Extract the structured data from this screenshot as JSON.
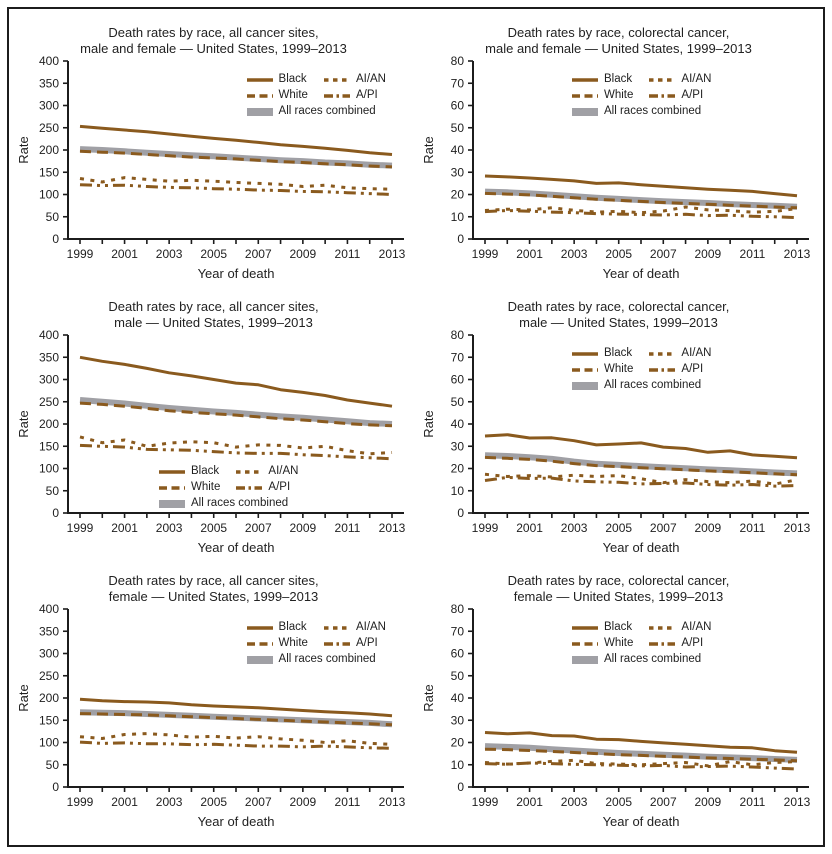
{
  "figure": {
    "background": "#ffffff",
    "border_color": "#1c1c1c"
  },
  "colors": {
    "brown": "#8a5a1e",
    "gray": "#a0a0a5",
    "axis": "#1c1c1c",
    "text": "#222222"
  },
  "chart_data": [
    {
      "type": "line",
      "title": [
        "Death rates by race, all cancer sites,",
        "male and female — United States, 1999–2013"
      ],
      "xlabel": "Year of death",
      "ylabel": "Rate",
      "ylim": [
        0,
        400
      ],
      "ytick_step": 50,
      "xtick_labels": [
        1999,
        2001,
        2003,
        2005,
        2007,
        2009,
        2011,
        2013
      ],
      "legend_pos": "top-right",
      "x": [
        1999,
        2000,
        2001,
        2002,
        2003,
        2004,
        2005,
        2006,
        2007,
        2008,
        2009,
        2010,
        2011,
        2012,
        2013
      ],
      "series": [
        {
          "name": "Black",
          "style": "solid",
          "color": "brown",
          "values": [
            253,
            249,
            245,
            241,
            236,
            231,
            226,
            222,
            217,
            212,
            208,
            204,
            199,
            194,
            190
          ]
        },
        {
          "name": "White",
          "style": "dashed",
          "color": "brown",
          "values": [
            197,
            195,
            193,
            190,
            187,
            184,
            182,
            180,
            177,
            174,
            172,
            169,
            167,
            164,
            162
          ]
        },
        {
          "name": "All races combined",
          "style": "thick-solid",
          "color": "gray",
          "values": [
            202,
            200,
            197,
            194,
            191,
            188,
            186,
            183,
            180,
            177,
            175,
            172,
            170,
            167,
            165
          ]
        },
        {
          "name": "AI/AN",
          "style": "dotted",
          "color": "brown",
          "values": [
            136,
            128,
            138,
            134,
            130,
            132,
            130,
            127,
            125,
            123,
            118,
            121,
            115,
            113,
            112
          ]
        },
        {
          "name": "A/PI",
          "style": "dash-dot-dot",
          "color": "brown",
          "values": [
            122,
            120,
            121,
            118,
            116,
            115,
            113,
            112,
            110,
            109,
            107,
            106,
            104,
            102,
            100
          ]
        }
      ]
    },
    {
      "type": "line",
      "title": [
        "Death rates by race, colorectal cancer,",
        "male and female — United States, 1999–2013"
      ],
      "xlabel": "Year of death",
      "ylabel": "Rate",
      "ylim": [
        0,
        80
      ],
      "ytick_step": 10,
      "xtick_labels": [
        1999,
        2001,
        2003,
        2005,
        2007,
        2009,
        2011,
        2013
      ],
      "legend_pos": "top-center",
      "x": [
        1999,
        2000,
        2001,
        2002,
        2003,
        2004,
        2005,
        2006,
        2007,
        2008,
        2009,
        2010,
        2011,
        2012,
        2013
      ],
      "series": [
        {
          "name": "Black",
          "style": "solid",
          "color": "brown",
          "values": [
            28.3,
            27.9,
            27.4,
            26.8,
            26.1,
            25.0,
            25.2,
            24.4,
            23.7,
            23.0,
            22.4,
            21.9,
            21.4,
            20.4,
            19.4
          ]
        },
        {
          "name": "White",
          "style": "dashed",
          "color": "brown",
          "values": [
            20.5,
            20.2,
            19.8,
            19.2,
            18.5,
            17.9,
            17.4,
            16.9,
            16.4,
            16.0,
            15.6,
            15.2,
            14.8,
            14.4,
            14.0
          ]
        },
        {
          "name": "All races combined",
          "style": "thick-solid",
          "color": "gray",
          "values": [
            21.3,
            21.0,
            20.5,
            19.9,
            19.2,
            18.5,
            18.0,
            17.5,
            17.0,
            16.6,
            16.2,
            15.7,
            15.3,
            14.9,
            14.5
          ]
        },
        {
          "name": "AI/AN",
          "style": "dotted",
          "color": "brown",
          "values": [
            12.8,
            13.4,
            13.1,
            14.0,
            12.9,
            12.1,
            12.4,
            11.8,
            12.6,
            14.4,
            13.1,
            12.7,
            12.1,
            12.4,
            13.7
          ]
        },
        {
          "name": "A/PI",
          "style": "dash-dot-dot",
          "color": "brown",
          "values": [
            12.3,
            12.8,
            12.5,
            12.1,
            11.8,
            11.4,
            11.2,
            11.0,
            10.8,
            11.1,
            10.5,
            10.7,
            10.2,
            10.0,
            9.6
          ]
        }
      ]
    },
    {
      "type": "line",
      "title": [
        "Death rates by race, all cancer sites,",
        "male — United States, 1999–2013"
      ],
      "xlabel": "Year of death",
      "ylabel": "Rate",
      "ylim": [
        0,
        400
      ],
      "ytick_step": 50,
      "xtick_labels": [
        1999,
        2001,
        2003,
        2005,
        2007,
        2009,
        2011,
        2013
      ],
      "legend_pos": "bottom-center",
      "x": [
        1999,
        2000,
        2001,
        2002,
        2003,
        2004,
        2005,
        2006,
        2007,
        2008,
        2009,
        2010,
        2011,
        2012,
        2013
      ],
      "series": [
        {
          "name": "Black",
          "style": "solid",
          "color": "brown",
          "values": [
            350,
            341,
            334,
            325,
            315,
            308,
            300,
            292,
            288,
            277,
            271,
            264,
            254,
            247,
            240
          ]
        },
        {
          "name": "White",
          "style": "dashed",
          "color": "brown",
          "values": [
            247,
            244,
            240,
            235,
            230,
            226,
            223,
            220,
            216,
            212,
            209,
            205,
            201,
            198,
            196
          ]
        },
        {
          "name": "All races combined",
          "style": "thick-solid",
          "color": "gray",
          "values": [
            254,
            250,
            246,
            241,
            236,
            232,
            228,
            225,
            221,
            217,
            214,
            210,
            206,
            202,
            200
          ]
        },
        {
          "name": "AI/AN",
          "style": "dotted",
          "color": "brown",
          "values": [
            171,
            158,
            164,
            150,
            157,
            160,
            158,
            148,
            153,
            152,
            146,
            150,
            140,
            133,
            136
          ]
        },
        {
          "name": "A/PI",
          "style": "dash-dot-dot",
          "color": "brown",
          "values": [
            152,
            150,
            148,
            143,
            142,
            141,
            138,
            135,
            134,
            134,
            131,
            129,
            126,
            124,
            122
          ]
        }
      ]
    },
    {
      "type": "line",
      "title": [
        "Death rates by race, colorectal cancer,",
        "male — United States, 1999–2013"
      ],
      "xlabel": "Year of death",
      "ylabel": "Rate",
      "ylim": [
        0,
        80
      ],
      "ytick_step": 10,
      "xtick_labels": [
        1999,
        2001,
        2003,
        2005,
        2007,
        2009,
        2011,
        2013
      ],
      "legend_pos": "top-center",
      "x": [
        1999,
        2000,
        2001,
        2002,
        2003,
        2004,
        2005,
        2006,
        2007,
        2008,
        2009,
        2010,
        2011,
        2012,
        2013
      ],
      "series": [
        {
          "name": "Black",
          "style": "solid",
          "color": "brown",
          "values": [
            34.6,
            35.2,
            33.7,
            33.8,
            32.5,
            30.6,
            31.0,
            31.5,
            29.6,
            29.0,
            27.3,
            27.9,
            26.1,
            25.5,
            24.8
          ]
        },
        {
          "name": "White",
          "style": "dashed",
          "color": "brown",
          "values": [
            25.0,
            24.6,
            24.1,
            23.3,
            22.2,
            21.3,
            20.8,
            20.3,
            19.9,
            19.4,
            18.9,
            18.5,
            18.1,
            17.6,
            17.2
          ]
        },
        {
          "name": "All races combined",
          "style": "thick-solid",
          "color": "gray",
          "values": [
            26.0,
            25.6,
            25.1,
            24.3,
            23.1,
            22.1,
            21.6,
            21.1,
            20.6,
            20.1,
            19.6,
            19.2,
            18.7,
            18.2,
            17.8
          ]
        },
        {
          "name": "AI/AN",
          "style": "dotted",
          "color": "brown",
          "values": [
            17.4,
            16.4,
            16.8,
            16.2,
            17.0,
            16.4,
            16.8,
            15.4,
            13.6,
            15.0,
            14.1,
            13.6,
            14.4,
            13.0,
            14.9
          ]
        },
        {
          "name": "A/PI",
          "style": "dash-dot-dot",
          "color": "brown",
          "values": [
            14.6,
            16.0,
            15.5,
            15.7,
            14.4,
            14.0,
            13.8,
            13.1,
            13.3,
            13.5,
            12.8,
            12.5,
            12.8,
            12.1,
            12.3
          ]
        }
      ]
    },
    {
      "type": "line",
      "title": [
        "Death rates by race, all cancer sites,",
        "female — United States, 1999–2013"
      ],
      "xlabel": "Year of death",
      "ylabel": "Rate",
      "ylim": [
        0,
        400
      ],
      "ytick_step": 50,
      "xtick_labels": [
        1999,
        2001,
        2003,
        2005,
        2007,
        2009,
        2011,
        2013
      ],
      "legend_pos": "top-right",
      "x": [
        1999,
        2000,
        2001,
        2002,
        2003,
        2004,
        2005,
        2006,
        2007,
        2008,
        2009,
        2010,
        2011,
        2012,
        2013
      ],
      "series": [
        {
          "name": "Black",
          "style": "solid",
          "color": "brown",
          "values": [
            197,
            194,
            192,
            191,
            189,
            185,
            182,
            180,
            178,
            175,
            172,
            169,
            167,
            164,
            160
          ]
        },
        {
          "name": "White",
          "style": "dashed",
          "color": "brown",
          "values": [
            165,
            164,
            163,
            162,
            160,
            158,
            156,
            154,
            152,
            150,
            148,
            146,
            144,
            142,
            140
          ]
        },
        {
          "name": "All races combined",
          "style": "thick-solid",
          "color": "gray",
          "values": [
            168,
            167,
            166,
            164,
            162,
            160,
            158,
            156,
            154,
            152,
            150,
            148,
            146,
            144,
            141
          ]
        },
        {
          "name": "AI/AN",
          "style": "dotted",
          "color": "brown",
          "values": [
            113,
            109,
            118,
            120,
            117,
            112,
            114,
            110,
            113,
            108,
            105,
            100,
            104,
            98,
            96
          ]
        },
        {
          "name": "A/PI",
          "style": "dash-dot-dot",
          "color": "brown",
          "values": [
            101,
            98,
            99,
            97,
            97,
            95,
            96,
            94,
            92,
            92,
            90,
            92,
            90,
            88,
            87
          ]
        }
      ]
    },
    {
      "type": "line",
      "title": [
        "Death rates by race, colorectal cancer,",
        "female — United States, 1999–2013"
      ],
      "xlabel": "Year of death",
      "ylabel": "Rate",
      "ylim": [
        0,
        80
      ],
      "ytick_step": 10,
      "xtick_labels": [
        1999,
        2001,
        2003,
        2005,
        2007,
        2009,
        2011,
        2013
      ],
      "legend_pos": "top-center",
      "x": [
        1999,
        2000,
        2001,
        2002,
        2003,
        2004,
        2005,
        2006,
        2007,
        2008,
        2009,
        2010,
        2011,
        2012,
        2013
      ],
      "series": [
        {
          "name": "Black",
          "style": "solid",
          "color": "brown",
          "values": [
            24.5,
            23.9,
            24.3,
            23.1,
            22.9,
            21.5,
            21.3,
            20.5,
            19.8,
            19.2,
            18.5,
            17.9,
            17.6,
            16.3,
            15.6
          ]
        },
        {
          "name": "White",
          "style": "dashed",
          "color": "brown",
          "values": [
            17.0,
            16.8,
            16.4,
            16.0,
            15.5,
            15.0,
            14.5,
            14.2,
            13.8,
            13.5,
            13.1,
            12.8,
            12.5,
            12.2,
            11.8
          ]
        },
        {
          "name": "All races combined",
          "style": "thick-solid",
          "color": "gray",
          "values": [
            18.4,
            18.0,
            17.6,
            17.0,
            16.4,
            15.8,
            15.3,
            14.9,
            14.5,
            14.1,
            13.6,
            13.3,
            13.0,
            12.6,
            12.2
          ]
        },
        {
          "name": "AI/AN",
          "style": "dotted",
          "color": "brown",
          "values": [
            11.0,
            10.3,
            10.8,
            11.5,
            12.0,
            10.5,
            10.3,
            10.0,
            10.5,
            11.0,
            9.5,
            11.4,
            10.0,
            11.0,
            11.4
          ]
        },
        {
          "name": "A/PI",
          "style": "dash-dot-dot",
          "color": "brown",
          "values": [
            10.5,
            10.2,
            10.8,
            10.5,
            10.2,
            10.0,
            9.8,
            9.5,
            9.7,
            9.0,
            9.2,
            9.4,
            9.0,
            8.5,
            8.1
          ]
        }
      ]
    }
  ]
}
